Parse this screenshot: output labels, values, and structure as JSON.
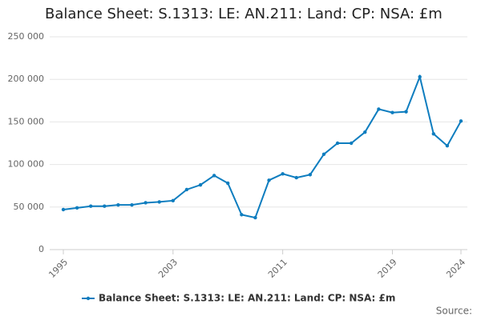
{
  "chart_data": {
    "type": "line",
    "title": "Balance Sheet: S.1313: LE: AN.211: Land: CP: NSA: £m",
    "source": "Source:",
    "x": [
      1995,
      1996,
      1997,
      1998,
      1999,
      2000,
      2001,
      2002,
      2003,
      2004,
      2005,
      2006,
      2007,
      2008,
      2009,
      2010,
      2011,
      2012,
      2013,
      2014,
      2015,
      2016,
      2017,
      2018,
      2019,
      2020,
      2021,
      2022,
      2023,
      2024
    ],
    "series": [
      {
        "name": "Balance Sheet: S.1313: LE: AN.211: Land: CP: NSA: £m",
        "color": "#0e7dbf",
        "values": [
          47000,
          49000,
          51000,
          51000,
          52500,
          52500,
          55000,
          56000,
          57500,
          70500,
          76000,
          87000,
          78000,
          41000,
          37500,
          81500,
          89000,
          84500,
          88000,
          112000,
          125000,
          125000,
          138000,
          165000,
          161000,
          162000,
          203000,
          136000,
          122000,
          151000
        ]
      }
    ],
    "xlim": [
      1995,
      2024
    ],
    "xticks": [
      1995,
      2003,
      2011,
      2019,
      2024
    ],
    "ylim": [
      0,
      250000
    ],
    "yticks": [
      0,
      {
        "value": 50000,
        "label": "50 000"
      },
      {
        "value": 100000,
        "label": "100 000"
      },
      {
        "value": 150000,
        "label": "150 000"
      },
      {
        "value": 200000,
        "label": "200 000"
      },
      {
        "value": 250000,
        "label": "250 000"
      }
    ],
    "grid": true
  }
}
